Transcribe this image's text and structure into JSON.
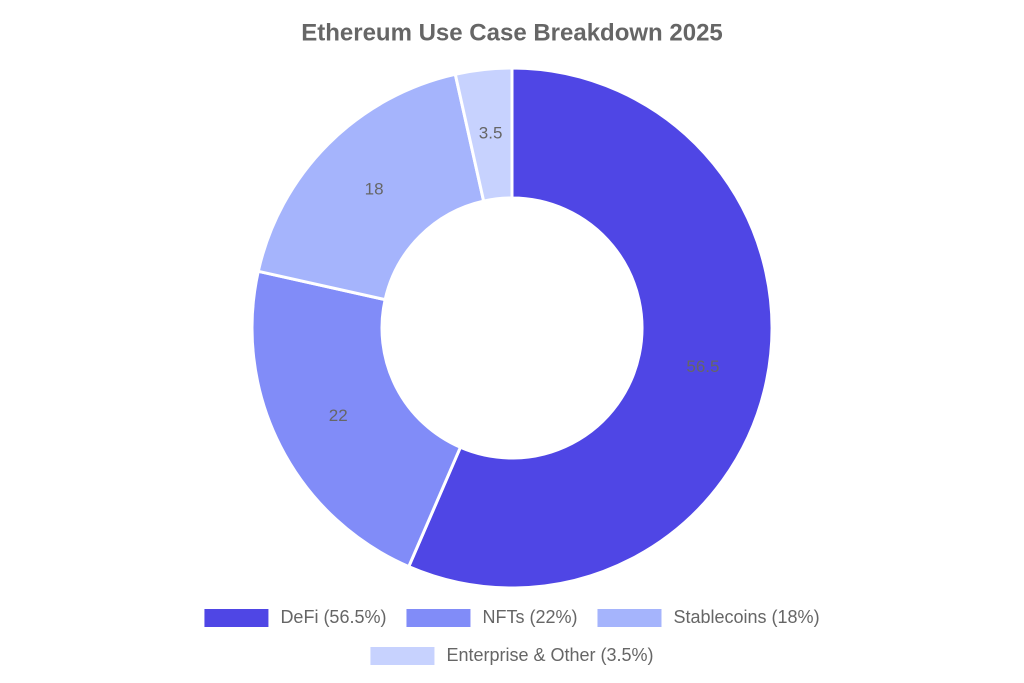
{
  "chart_data": {
    "type": "donut",
    "title": "Ethereum Use Case Breakdown 2025",
    "categories": [
      "DeFi (56.5%)",
      "NFTs (22%)",
      "Stablecoins (18%)",
      "Enterprise & Other (3.5%)"
    ],
    "values": [
      56.5,
      22,
      18,
      3.5
    ],
    "colors": [
      "#4f46e5",
      "#818cf8",
      "#a5b4fc",
      "#c7d2fe"
    ],
    "legend": "bottom"
  }
}
